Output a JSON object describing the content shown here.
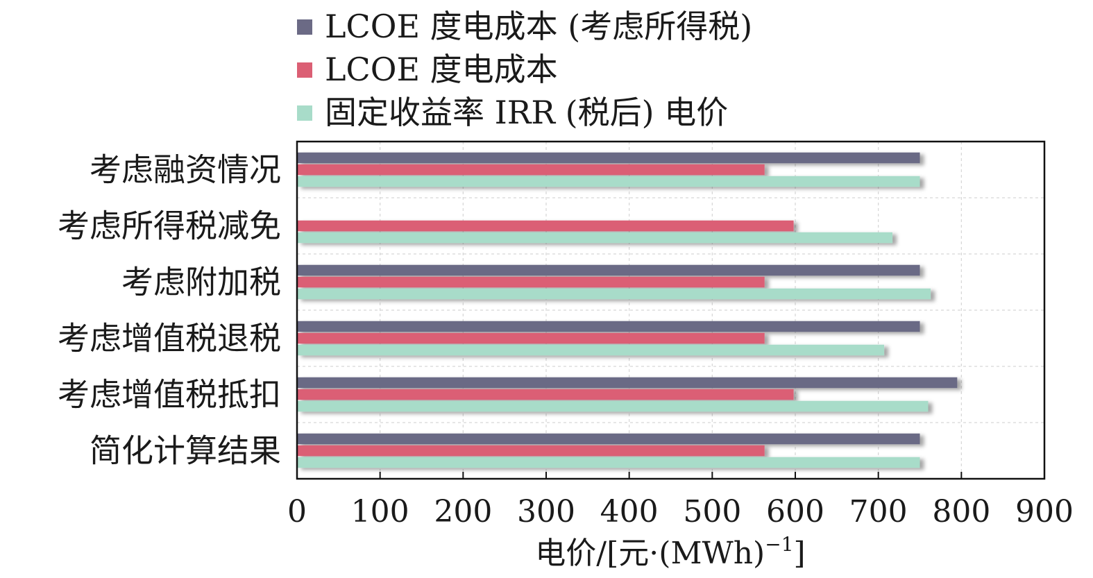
{
  "colors": {
    "lcoe_tax": "#6b6a85",
    "lcoe": "#db5f74",
    "irr": "#a8dcc9"
  },
  "chart_data": {
    "type": "bar",
    "orientation": "horizontal",
    "categories": [
      "考虑融资情况",
      "考虑所得税减免",
      "考虑附加税",
      "考虑增值税退税",
      "考虑增值税抵扣",
      "简化计算结果"
    ],
    "series": [
      {
        "name": "LCOE 度电成本 (考虑所得税)",
        "values": [
          750,
          null,
          750,
          750,
          795,
          750
        ]
      },
      {
        "name": "LCOE 度电成本",
        "values": [
          563,
          598,
          563,
          563,
          598,
          563
        ]
      },
      {
        "name": "固定收益率 IRR (税后) 电价",
        "values": [
          750,
          717,
          763,
          707,
          760,
          750
        ]
      }
    ],
    "xlim": [
      0,
      900
    ],
    "xticks": [
      0,
      100,
      200,
      300,
      400,
      500,
      600,
      700,
      800,
      900
    ],
    "xlabel": "电价/[元·(MWh)",
    "xlabel_sup": "−1",
    "xlabel_close": "]",
    "grid": true,
    "legend_position": "top"
  }
}
